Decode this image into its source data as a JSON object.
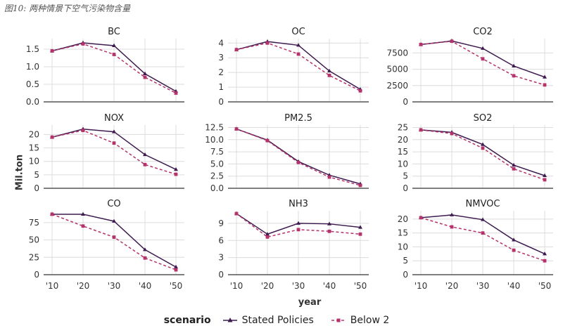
{
  "figure_title": "图10: 两种情景下空气污染物含量",
  "ylabel": "Mil.ton",
  "xlabel": "year",
  "legend": {
    "title": "scenario",
    "entries": [
      {
        "name": "Stated Policies",
        "color": "#3d1b4f",
        "style": "solid",
        "marker": "triangle"
      },
      {
        "name": "Below 2",
        "color": "#b5336b",
        "style": "dashed",
        "marker": "square"
      }
    ]
  },
  "x_tick_labels": [
    "'10",
    "'20",
    "'30",
    "'40",
    "'50"
  ],
  "chart_data": [
    {
      "type": "line",
      "title": "BC",
      "x": [
        2010,
        2020,
        2030,
        2040,
        2050
      ],
      "ylim": [
        0,
        1.8
      ],
      "yticks": [
        0,
        0.5,
        1.0,
        1.5
      ],
      "ytick_labels": [
        "0.0",
        "0.5",
        "1.0",
        "1.5"
      ],
      "series": [
        {
          "name": "Stated Policies",
          "values": [
            1.45,
            1.68,
            1.6,
            0.8,
            0.3
          ]
        },
        {
          "name": "Below 2",
          "values": [
            1.45,
            1.65,
            1.35,
            0.7,
            0.25
          ]
        }
      ]
    },
    {
      "type": "line",
      "title": "OC",
      "x": [
        2010,
        2020,
        2030,
        2040,
        2050
      ],
      "ylim": [
        0,
        4.3
      ],
      "yticks": [
        0,
        1,
        2,
        3,
        4
      ],
      "ytick_labels": [
        "0",
        "1",
        "2",
        "3",
        "4"
      ],
      "series": [
        {
          "name": "Stated Policies",
          "values": [
            3.55,
            4.1,
            3.85,
            2.1,
            0.85
          ]
        },
        {
          "name": "Below 2",
          "values": [
            3.55,
            4.0,
            3.25,
            1.8,
            0.75
          ]
        }
      ]
    },
    {
      "type": "line",
      "title": "CO2",
      "x": [
        2010,
        2020,
        2030,
        2040,
        2050
      ],
      "ylim": [
        0,
        9700
      ],
      "yticks": [
        0,
        2500,
        5000,
        7500
      ],
      "ytick_labels": [
        "0",
        "2500",
        "5000",
        "7500"
      ],
      "series": [
        {
          "name": "Stated Policies",
          "values": [
            8800,
            9350,
            8200,
            5500,
            3800
          ]
        },
        {
          "name": "Below 2",
          "values": [
            8800,
            9300,
            6600,
            4000,
            2600
          ]
        }
      ]
    },
    {
      "type": "line",
      "title": "NOX",
      "x": [
        2010,
        2020,
        2030,
        2040,
        2050
      ],
      "ylim": [
        0,
        23.5
      ],
      "yticks": [
        0,
        5,
        10,
        15,
        20
      ],
      "ytick_labels": [
        "0",
        "5",
        "10",
        "15",
        "20"
      ],
      "series": [
        {
          "name": "Stated Policies",
          "values": [
            19,
            22,
            21,
            12.5,
            7
          ]
        },
        {
          "name": "Below 2",
          "values": [
            19,
            21.5,
            16.8,
            8.8,
            5.2
          ]
        }
      ]
    },
    {
      "type": "line",
      "title": "PM2.5",
      "x": [
        2010,
        2020,
        2030,
        2040,
        2050
      ],
      "ylim": [
        0,
        13
      ],
      "yticks": [
        0,
        2.5,
        5,
        7.5,
        10,
        12.5
      ],
      "ytick_labels": [
        "0.0",
        "2.5",
        "5.0",
        "7.5",
        "10.0",
        "12.5"
      ],
      "series": [
        {
          "name": "Stated Policies",
          "values": [
            12.2,
            9.9,
            5.5,
            2.7,
            0.9
          ]
        },
        {
          "name": "Below 2",
          "values": [
            12.2,
            9.8,
            5.3,
            2.3,
            0.6
          ]
        }
      ]
    },
    {
      "type": "line",
      "title": "SO2",
      "x": [
        2010,
        2020,
        2030,
        2040,
        2050
      ],
      "ylim": [
        0,
        26
      ],
      "yticks": [
        0,
        5,
        10,
        15,
        20,
        25
      ],
      "ytick_labels": [
        "0",
        "5",
        "10",
        "15",
        "20",
        "25"
      ],
      "series": [
        {
          "name": "Stated Policies",
          "values": [
            24,
            23,
            18,
            9.5,
            5.2
          ]
        },
        {
          "name": "Below 2",
          "values": [
            24,
            22.5,
            16.5,
            8,
            3.5
          ]
        }
      ]
    },
    {
      "type": "line",
      "title": "CO",
      "x": [
        2010,
        2020,
        2030,
        2040,
        2050
      ],
      "ylim": [
        0,
        92
      ],
      "yticks": [
        0,
        25,
        50,
        75
      ],
      "ytick_labels": [
        "0",
        "25",
        "50",
        "75"
      ],
      "series": [
        {
          "name": "Stated Policies",
          "values": [
            87,
            87,
            77,
            36,
            11
          ]
        },
        {
          "name": "Below 2",
          "values": [
            87,
            70,
            54,
            24,
            7
          ]
        }
      ]
    },
    {
      "type": "line",
      "title": "NH3",
      "x": [
        2010,
        2020,
        2030,
        2040,
        2050
      ],
      "ylim": [
        0,
        11.2
      ],
      "yticks": [
        0,
        3,
        6,
        9
      ],
      "ytick_labels": [
        "0",
        "3",
        "6",
        "9"
      ],
      "series": [
        {
          "name": "Stated Policies",
          "values": [
            10.7,
            7.1,
            9.0,
            8.9,
            8.3
          ]
        },
        {
          "name": "Below 2",
          "values": [
            10.7,
            6.6,
            7.9,
            7.6,
            7.1
          ]
        }
      ]
    },
    {
      "type": "line",
      "title": "NMVOC",
      "x": [
        2010,
        2020,
        2030,
        2040,
        2050
      ],
      "ylim": [
        0,
        23
      ],
      "yticks": [
        0,
        5,
        10,
        15,
        20
      ],
      "ytick_labels": [
        "0",
        "5",
        "10",
        "15",
        "20"
      ],
      "series": [
        {
          "name": "Stated Policies",
          "values": [
            20.5,
            21.5,
            19.8,
            12.5,
            7.5
          ]
        },
        {
          "name": "Below 2",
          "values": [
            20.5,
            17.2,
            15,
            8.8,
            5
          ]
        }
      ]
    }
  ]
}
